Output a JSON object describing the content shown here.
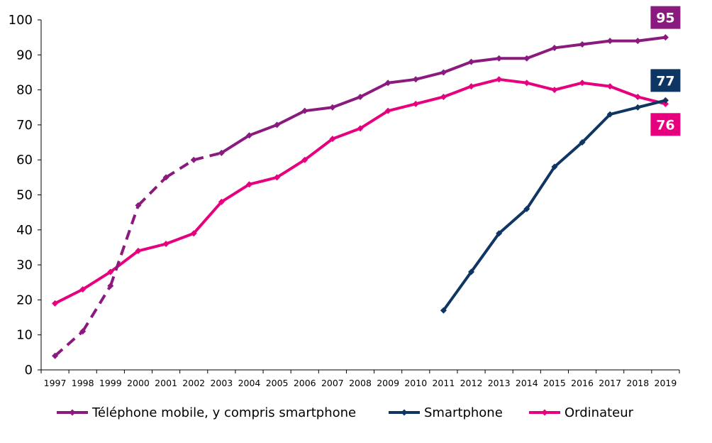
{
  "chart_data": {
    "type": "line",
    "title": "",
    "xlabel": "",
    "ylabel": "",
    "ylim": [
      0,
      100
    ],
    "yticks": [
      "0",
      "10",
      "20",
      "30",
      "40",
      "50",
      "60",
      "70",
      "80",
      "90",
      "100"
    ],
    "categories": [
      "1997",
      "1998",
      "1999",
      "2000",
      "2001",
      "2002",
      "2003",
      "2004",
      "2005",
      "2006",
      "2007",
      "2008",
      "2009",
      "2010",
      "2011",
      "2012",
      "2013",
      "2014",
      "2015",
      "2016",
      "2017",
      "2018",
      "2019"
    ],
    "grid": false,
    "legend_position": "bottom",
    "series": [
      {
        "name": "Téléphone mobile, y compris smartphone",
        "color": "#8B1A7E",
        "dashed_until_index": 6,
        "values": [
          4,
          11,
          24,
          47,
          55,
          60,
          62,
          67,
          70,
          74,
          75,
          78,
          82,
          83,
          85,
          88,
          89,
          89,
          92,
          93,
          94,
          94,
          95
        ],
        "end_label": "95"
      },
      {
        "name": "Smartphone",
        "color": "#0F3563",
        "values": [
          null,
          null,
          null,
          null,
          null,
          null,
          null,
          null,
          null,
          null,
          null,
          null,
          null,
          null,
          17,
          28,
          39,
          46,
          58,
          65,
          73,
          75,
          77
        ],
        "end_label": "77"
      },
      {
        "name": "Ordinateur",
        "color": "#E6007E",
        "values": [
          19,
          23,
          28,
          34,
          36,
          39,
          48,
          53,
          55,
          60,
          66,
          69,
          74,
          76,
          78,
          81,
          83,
          82,
          80,
          82,
          81,
          78,
          76
        ],
        "end_label": "76"
      }
    ]
  }
}
